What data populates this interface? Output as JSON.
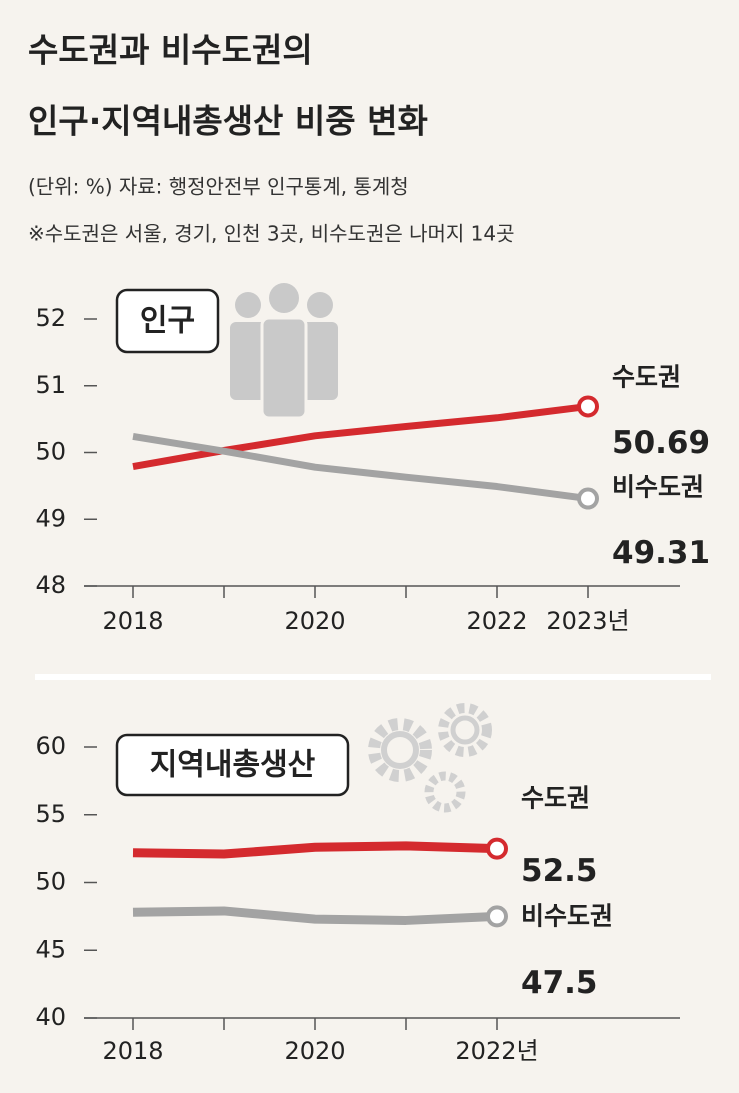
{
  "header": {
    "title": [
      "수도권과 비수도권의",
      "인구·지역내총생산 비중 변화"
    ],
    "source": "(단위: %) 자료: 행정안전부 인구통계, 통계청",
    "note": "※수도권은 서울, 경기, 인천 3곳, 비수도권은 나머지 14곳"
  },
  "chart_data": [
    {
      "type": "line",
      "title": "인구",
      "categories": [
        "2018",
        null,
        "2020",
        null,
        "2022",
        "2023년"
      ],
      "series": [
        {
          "name": "수도권",
          "color": "#d42a2e",
          "values": [
            49.79,
            50.03,
            50.25,
            50.39,
            50.52,
            50.69
          ]
        },
        {
          "name": "비수도권",
          "color": "#a3a3a3",
          "values": [
            50.24,
            50.02,
            49.78,
            49.63,
            49.49,
            49.31
          ]
        }
      ],
      "ylim": [
        48,
        52
      ],
      "yticks": [
        48,
        49,
        50,
        51,
        52
      ]
    },
    {
      "type": "line",
      "title": "지역내총생산",
      "categories": [
        "2018",
        null,
        "2020",
        null,
        "2022년"
      ],
      "series": [
        {
          "name": "수도권",
          "color": "#d42a2e",
          "values": [
            52.2,
            52.1,
            52.6,
            52.7,
            52.5
          ]
        },
        {
          "name": "비수도권",
          "color": "#a3a3a3",
          "values": [
            47.8,
            47.9,
            47.3,
            47.2,
            47.5
          ]
        }
      ],
      "ylim": [
        40,
        60
      ],
      "yticks": [
        40,
        45,
        50,
        55,
        60
      ]
    }
  ]
}
